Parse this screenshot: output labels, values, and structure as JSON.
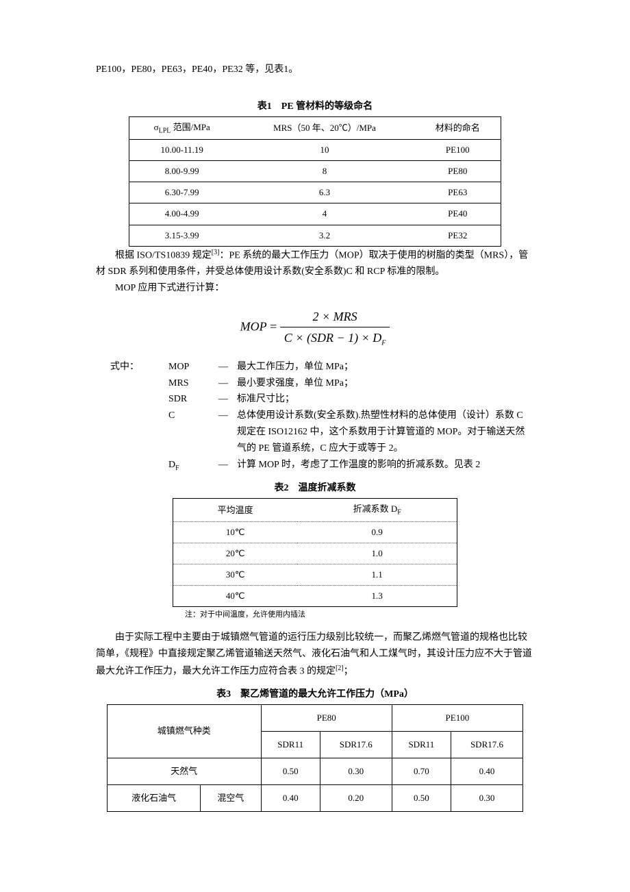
{
  "intro": "PE100，PE80，PE63，PE40，PE32 等，见表1。",
  "table1": {
    "caption": "表1　PE 管材料的等级命名",
    "headers": [
      "σLPL 范围/MPa",
      "MRS（50 年、20℃）/MPa",
      "材料的命名"
    ],
    "h0_pre": "σ",
    "h0_sub": "LPL",
    "h0_post": " 范围/MPa",
    "rows": [
      [
        "10.00-11.19",
        "10",
        "PE100"
      ],
      [
        "8.00-9.99",
        "8",
        "PE80"
      ],
      [
        "6.30-7.99",
        "6.3",
        "PE63"
      ],
      [
        "4.00-4.99",
        "4",
        "PE40"
      ],
      [
        "3.15-3.99",
        "3.2",
        "PE32"
      ]
    ]
  },
  "para2a": "根据 ISO/TS10839 规定",
  "para2ref": "[3]",
  "para2b": "：PE 系统的最大工作压力（MOP）取决于使用的树脂的类型（MRS），管材 SDR 系列和使用条件，并受总体使用设计系数(安全系数)C 和 RCP 标准的限制。",
  "para3": "MOP 应用下式进行计算：",
  "formula": {
    "lhs": "MOP",
    "num": "2 × MRS",
    "den_pre": "C × (SDR − 1) × D",
    "den_sub": "F"
  },
  "defs_lead": "式中：",
  "defs": [
    {
      "label": "MOP",
      "text": "最大工作压力，单位 MPa；"
    },
    {
      "label": "MRS",
      "text": "最小要求强度，单位 MPa；"
    },
    {
      "label": "SDR",
      "text": "标准尺寸比；"
    },
    {
      "label": "C",
      "text": "总体使用设计系数(安全系数).热塑性材料的总体使用（设计）系数 C 规定在 ISO12162 中，这个系数用于计算管道的 MOP。对于输送天然气的 PE 管道系统，C 应大于或等于 2。"
    },
    {
      "label": "DF",
      "label_pre": "D",
      "label_sub": "F",
      "text": "计算 MOP 时，考虑了工作温度的影响的折减系数。见表 2"
    }
  ],
  "table2": {
    "caption": "表2　温度折减系数",
    "headers_pre": "折减系数 D",
    "headers_sub": "F",
    "header0": "平均温度",
    "rows": [
      [
        "10℃",
        "0.9"
      ],
      [
        "20℃",
        "1.0"
      ],
      [
        "30℃",
        "1.1"
      ],
      [
        "40℃",
        "1.3"
      ]
    ],
    "note": "注：对于中间温度，允许使用内插法"
  },
  "para4a": "由于实际工程中主要由于城镇燃气管道的运行压力级别比较统一，而聚乙烯燃气管道的规格也比较简单，《规程》中直接规定聚乙烯管道输送天然气、液化石油气和人工煤气时，其设计压力应不大于管道最大允许工作压力，最大允许工作压力应符合表 3 的规定",
  "para4ref": "[2]",
  "para4b": "；",
  "table3": {
    "caption": "表3　聚乙烯管道的最大允许工作压力（MPa）",
    "row_header": "城镇燃气种类",
    "groups": [
      "PE80",
      "PE100"
    ],
    "subs": [
      "SDR11",
      "SDR17.6",
      "SDR11",
      "SDR17.6"
    ],
    "rows": [
      {
        "label": [
          "天然气"
        ],
        "span": 2,
        "vals": [
          "0.50",
          "0.30",
          "0.70",
          "0.40"
        ]
      },
      {
        "label": [
          "液化石油气",
          "混空气"
        ],
        "span": 1,
        "vals": [
          "0.40",
          "0.20",
          "0.50",
          "0.30"
        ]
      }
    ]
  }
}
